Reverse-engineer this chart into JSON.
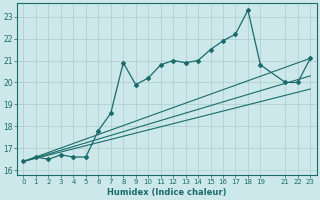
{
  "xlabel": "Humidex (Indice chaleur)",
  "bg_color": "#cce8ea",
  "grid_color": "#aacccc",
  "line_color": "#1a6b6b",
  "xlim": [
    -0.5,
    23.5
  ],
  "ylim": [
    15.8,
    23.6
  ],
  "yticks": [
    16,
    17,
    18,
    19,
    20,
    21,
    22,
    23
  ],
  "xticks": [
    0,
    1,
    2,
    3,
    4,
    5,
    6,
    7,
    8,
    9,
    10,
    11,
    12,
    13,
    14,
    15,
    16,
    17,
    18,
    19,
    21,
    22,
    23
  ],
  "xtick_labels": [
    "0",
    "1",
    "2",
    "3",
    "4",
    "5",
    "6",
    "7",
    "8",
    "9",
    "10",
    "11",
    "12",
    "13",
    "14",
    "15",
    "16",
    "17",
    "18",
    "19",
    "21",
    "22",
    "23"
  ],
  "main_x": [
    0,
    1,
    2,
    3,
    4,
    5,
    6,
    7,
    8,
    9,
    10,
    11,
    12,
    13,
    14,
    15,
    16,
    17,
    18,
    19,
    21,
    22,
    23
  ],
  "main_y": [
    16.4,
    16.6,
    16.5,
    16.7,
    16.6,
    16.6,
    17.8,
    18.6,
    20.9,
    19.9,
    20.2,
    20.8,
    21.0,
    20.9,
    21.0,
    21.5,
    21.9,
    22.2,
    23.3,
    20.8,
    20.0,
    20.0,
    21.1
  ],
  "line2_x": [
    0,
    23
  ],
  "line2_y": [
    16.4,
    21.1
  ],
  "line3_x": [
    0,
    23
  ],
  "line3_y": [
    16.4,
    20.3
  ],
  "line4_x": [
    0,
    23
  ],
  "line4_y": [
    16.4,
    19.7
  ]
}
